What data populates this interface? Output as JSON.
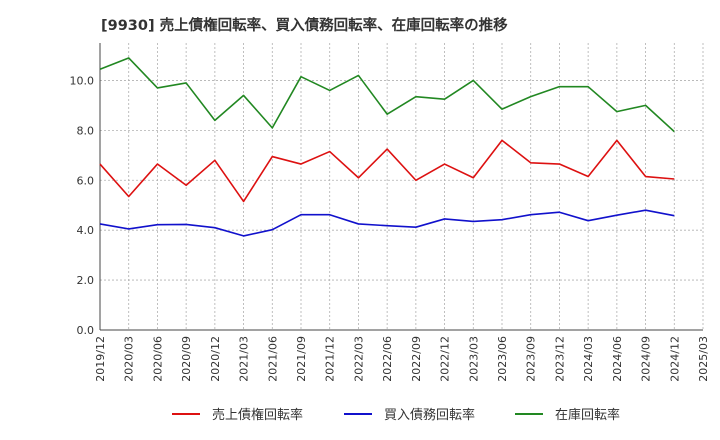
{
  "chart_data": {
    "type": "line",
    "title": "[9930]  売上債権回転率、買入債務回転率、在庫回転率の推移",
    "xlabel": "",
    "ylabel": "",
    "ylim": [
      0,
      11.5
    ],
    "yticks": [
      "0.0",
      "2.0",
      "4.0",
      "6.0",
      "8.0",
      "10.0"
    ],
    "grid": true,
    "legend_position": "bottom",
    "x": [
      "2019/12",
      "2020/03",
      "2020/06",
      "2020/09",
      "2020/12",
      "2021/03",
      "2021/06",
      "2021/09",
      "2021/12",
      "2022/03",
      "2022/06",
      "2022/09",
      "2022/12",
      "2023/03",
      "2023/06",
      "2023/09",
      "2023/12",
      "2024/03",
      "2024/06",
      "2024/09",
      "2024/12",
      "2025/03"
    ],
    "series": [
      {
        "name": "売上債権回転率",
        "color": "#dd1111",
        "values": [
          6.65,
          5.35,
          6.65,
          5.8,
          6.8,
          5.15,
          6.95,
          6.65,
          7.15,
          6.1,
          7.25,
          6.0,
          6.65,
          6.1,
          7.6,
          6.7,
          6.65,
          6.15,
          7.6,
          6.15,
          6.05,
          null
        ]
      },
      {
        "name": "買入債務回転率",
        "color": "#1111cc",
        "values": [
          4.25,
          4.05,
          4.22,
          4.23,
          4.1,
          3.77,
          4.02,
          4.62,
          4.62,
          4.25,
          4.18,
          4.12,
          4.45,
          4.35,
          4.42,
          4.62,
          4.72,
          4.38,
          4.6,
          4.8,
          4.58,
          null
        ]
      },
      {
        "name": "在庫回転率",
        "color": "#228822",
        "values": [
          10.45,
          10.9,
          9.7,
          9.9,
          8.4,
          9.4,
          8.1,
          10.15,
          9.6,
          10.2,
          8.65,
          9.35,
          9.25,
          10.0,
          8.85,
          9.35,
          9.75,
          9.75,
          8.75,
          9.0,
          7.95,
          null
        ]
      }
    ]
  }
}
